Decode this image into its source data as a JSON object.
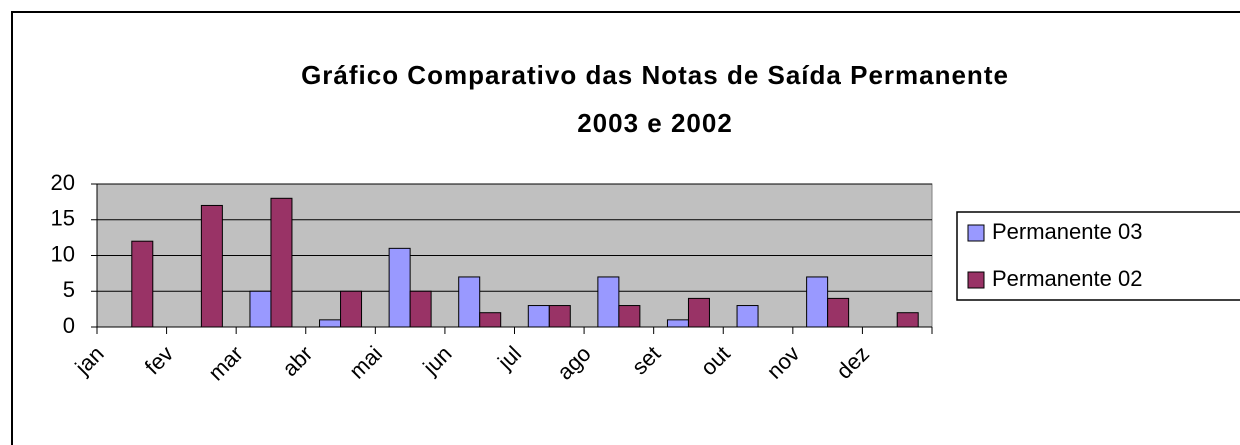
{
  "chart_data": {
    "type": "bar",
    "title": [
      "Gráfico Comparativo das Notas de Saída Permanente",
      "2003 e 2002"
    ],
    "categories": [
      "jan",
      "fev",
      "mar",
      "abr",
      "mai",
      "jun",
      "jul",
      "ago",
      "set",
      "out",
      "nov",
      "dez"
    ],
    "series": [
      {
        "name": "Permanente 03",
        "color": "#9999ff",
        "values": [
          0,
          0,
          5,
          1,
          11,
          7,
          3,
          7,
          1,
          3,
          7,
          0
        ]
      },
      {
        "name": "Permanente 02",
        "color": "#993366",
        "values": [
          12,
          17,
          18,
          5,
          5,
          2,
          3,
          3,
          4,
          0,
          4,
          2
        ]
      }
    ],
    "ylim": [
      0,
      20
    ],
    "yticks": [
      0,
      5,
      10,
      15,
      20
    ],
    "grid": true,
    "legend": "right"
  }
}
